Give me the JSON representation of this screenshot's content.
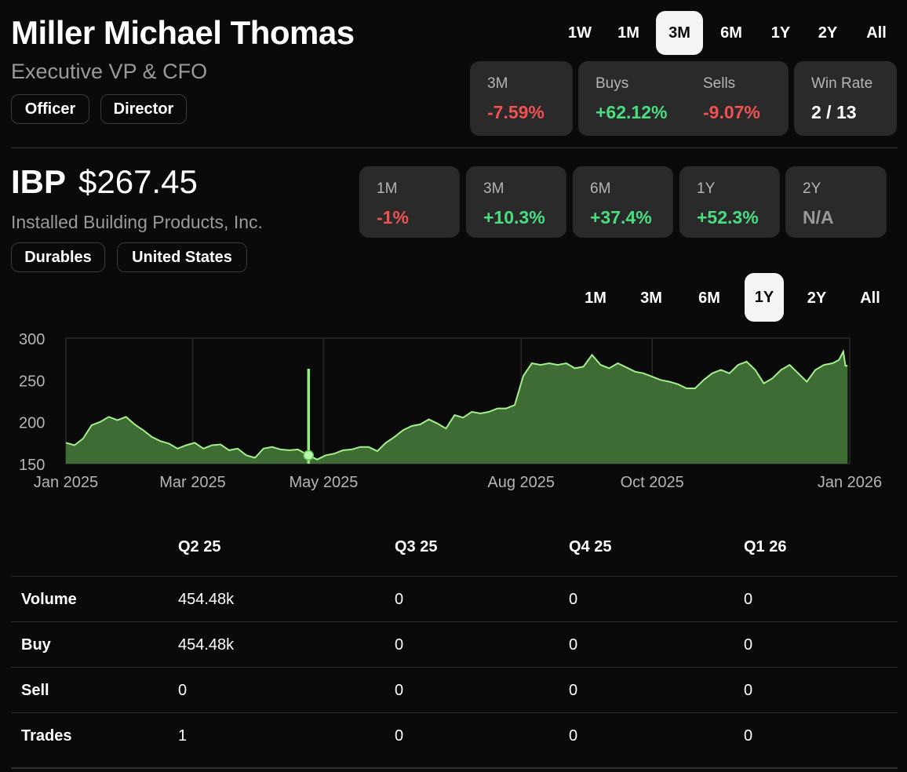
{
  "insider": {
    "name": "Miller Michael Thomas",
    "title": "Executive VP & CFO",
    "tags": [
      "Officer",
      "Director"
    ]
  },
  "insider_timeframes": {
    "options": [
      "1W",
      "1M",
      "3M",
      "6M",
      "1Y",
      "2Y",
      "All"
    ],
    "selected": "3M"
  },
  "insider_stats": [
    {
      "label": "3M",
      "value": "-7.59%",
      "tone": "neg"
    },
    {
      "label": "Buys",
      "value": "+62.12%",
      "tone": "pos"
    },
    {
      "label": "Sells",
      "value": "-9.07%",
      "tone": "neg"
    },
    {
      "label": "Win Rate",
      "value": "2 / 13",
      "tone": "neu"
    }
  ],
  "stock": {
    "ticker": "IBP",
    "price": "$267.45",
    "company": "Installed Building Products, Inc.",
    "tags": [
      "Durables",
      "United States"
    ]
  },
  "stock_returns": [
    {
      "label": "1M",
      "value": "-1%",
      "tone": "neg"
    },
    {
      "label": "3M",
      "value": "+10.3%",
      "tone": "pos"
    },
    {
      "label": "6M",
      "value": "+37.4%",
      "tone": "pos"
    },
    {
      "label": "1Y",
      "value": "+52.3%",
      "tone": "pos"
    },
    {
      "label": "2Y",
      "value": "N/A",
      "tone": "na"
    }
  ],
  "chart_timeframes": {
    "options": [
      "1M",
      "3M",
      "6M",
      "1Y",
      "2Y",
      "All"
    ],
    "selected": "1Y"
  },
  "chart_data": {
    "type": "area",
    "xlabel": "",
    "ylabel": "",
    "ylim": [
      150,
      300
    ],
    "y_ticks": [
      300,
      250,
      200,
      150
    ],
    "x_ticks": [
      {
        "label": "Jan 2025",
        "x": "2025-01-01"
      },
      {
        "label": "Mar 2025",
        "x": "2025-03-01"
      },
      {
        "label": "May 2025",
        "x": "2025-05-01"
      },
      {
        "label": "Aug 2025",
        "x": "2025-08-01"
      },
      {
        "label": "Oct 2025",
        "x": "2025-10-01"
      },
      {
        "label": "Jan 2026",
        "x": "2026-01-01"
      }
    ],
    "grid": true,
    "line_color": "#a3f08a",
    "fill_color": "#3f6b35",
    "trade_marker": {
      "x": "2025-04-24",
      "y": 160
    },
    "series": [
      {
        "x": "2025-01-01",
        "y": 175
      },
      {
        "x": "2025-01-05",
        "y": 172
      },
      {
        "x": "2025-01-09",
        "y": 180
      },
      {
        "x": "2025-01-13",
        "y": 196
      },
      {
        "x": "2025-01-17",
        "y": 200
      },
      {
        "x": "2025-01-21",
        "y": 206
      },
      {
        "x": "2025-01-25",
        "y": 202
      },
      {
        "x": "2025-01-29",
        "y": 206
      },
      {
        "x": "2025-02-02",
        "y": 197
      },
      {
        "x": "2025-02-06",
        "y": 190
      },
      {
        "x": "2025-02-10",
        "y": 182
      },
      {
        "x": "2025-02-14",
        "y": 177
      },
      {
        "x": "2025-02-18",
        "y": 174
      },
      {
        "x": "2025-02-22",
        "y": 168
      },
      {
        "x": "2025-02-26",
        "y": 172
      },
      {
        "x": "2025-03-02",
        "y": 175
      },
      {
        "x": "2025-03-06",
        "y": 168
      },
      {
        "x": "2025-03-10",
        "y": 172
      },
      {
        "x": "2025-03-14",
        "y": 173
      },
      {
        "x": "2025-03-18",
        "y": 166
      },
      {
        "x": "2025-03-22",
        "y": 168
      },
      {
        "x": "2025-03-26",
        "y": 160
      },
      {
        "x": "2025-03-30",
        "y": 157
      },
      {
        "x": "2025-04-03",
        "y": 168
      },
      {
        "x": "2025-04-07",
        "y": 170
      },
      {
        "x": "2025-04-11",
        "y": 167
      },
      {
        "x": "2025-04-15",
        "y": 166
      },
      {
        "x": "2025-04-19",
        "y": 167
      },
      {
        "x": "2025-04-24",
        "y": 160
      },
      {
        "x": "2025-04-28",
        "y": 155
      },
      {
        "x": "2025-05-02",
        "y": 160
      },
      {
        "x": "2025-05-06",
        "y": 162
      },
      {
        "x": "2025-05-10",
        "y": 166
      },
      {
        "x": "2025-05-14",
        "y": 167
      },
      {
        "x": "2025-05-18",
        "y": 170
      },
      {
        "x": "2025-05-22",
        "y": 170
      },
      {
        "x": "2025-05-26",
        "y": 165
      },
      {
        "x": "2025-05-30",
        "y": 175
      },
      {
        "x": "2025-06-03",
        "y": 182
      },
      {
        "x": "2025-06-07",
        "y": 190
      },
      {
        "x": "2025-06-11",
        "y": 195
      },
      {
        "x": "2025-06-15",
        "y": 197
      },
      {
        "x": "2025-06-19",
        "y": 203
      },
      {
        "x": "2025-06-23",
        "y": 198
      },
      {
        "x": "2025-06-27",
        "y": 192
      },
      {
        "x": "2025-07-01",
        "y": 208
      },
      {
        "x": "2025-07-05",
        "y": 205
      },
      {
        "x": "2025-07-09",
        "y": 212
      },
      {
        "x": "2025-07-13",
        "y": 210
      },
      {
        "x": "2025-07-17",
        "y": 212
      },
      {
        "x": "2025-07-21",
        "y": 216
      },
      {
        "x": "2025-07-25",
        "y": 216
      },
      {
        "x": "2025-07-29",
        "y": 220
      },
      {
        "x": "2025-08-02",
        "y": 255
      },
      {
        "x": "2025-08-06",
        "y": 270
      },
      {
        "x": "2025-08-10",
        "y": 268
      },
      {
        "x": "2025-08-14",
        "y": 270
      },
      {
        "x": "2025-08-18",
        "y": 268
      },
      {
        "x": "2025-08-22",
        "y": 270
      },
      {
        "x": "2025-08-26",
        "y": 264
      },
      {
        "x": "2025-08-30",
        "y": 266
      },
      {
        "x": "2025-09-03",
        "y": 280
      },
      {
        "x": "2025-09-07",
        "y": 268
      },
      {
        "x": "2025-09-11",
        "y": 264
      },
      {
        "x": "2025-09-15",
        "y": 270
      },
      {
        "x": "2025-09-19",
        "y": 265
      },
      {
        "x": "2025-09-23",
        "y": 260
      },
      {
        "x": "2025-09-27",
        "y": 258
      },
      {
        "x": "2025-10-01",
        "y": 254
      },
      {
        "x": "2025-10-05",
        "y": 250
      },
      {
        "x": "2025-10-09",
        "y": 248
      },
      {
        "x": "2025-10-13",
        "y": 245
      },
      {
        "x": "2025-10-17",
        "y": 240
      },
      {
        "x": "2025-10-21",
        "y": 240
      },
      {
        "x": "2025-10-25",
        "y": 250
      },
      {
        "x": "2025-10-29",
        "y": 258
      },
      {
        "x": "2025-11-02",
        "y": 262
      },
      {
        "x": "2025-11-06",
        "y": 258
      },
      {
        "x": "2025-11-10",
        "y": 268
      },
      {
        "x": "2025-11-14",
        "y": 272
      },
      {
        "x": "2025-11-18",
        "y": 262
      },
      {
        "x": "2025-11-22",
        "y": 246
      },
      {
        "x": "2025-11-26",
        "y": 252
      },
      {
        "x": "2025-11-30",
        "y": 262
      },
      {
        "x": "2025-12-04",
        "y": 268
      },
      {
        "x": "2025-12-08",
        "y": 258
      },
      {
        "x": "2025-12-12",
        "y": 248
      },
      {
        "x": "2025-12-16",
        "y": 262
      },
      {
        "x": "2025-12-20",
        "y": 268
      },
      {
        "x": "2025-12-24",
        "y": 270
      },
      {
        "x": "2025-12-27",
        "y": 274
      },
      {
        "x": "2025-12-29",
        "y": 284
      },
      {
        "x": "2025-12-30",
        "y": 267
      },
      {
        "x": "2025-12-31",
        "y": 267
      }
    ]
  },
  "table": {
    "columns": [
      "Q2 25",
      "Q3 25",
      "Q4 25",
      "Q1 26"
    ],
    "rows": [
      {
        "label": "Volume",
        "values": [
          "454.48k",
          "0",
          "0",
          "0"
        ]
      },
      {
        "label": "Buy",
        "values": [
          "454.48k",
          "0",
          "0",
          "0"
        ]
      },
      {
        "label": "Sell",
        "values": [
          "0",
          "0",
          "0",
          "0"
        ]
      },
      {
        "label": "Trades",
        "values": [
          "1",
          "0",
          "0",
          "0"
        ]
      }
    ]
  }
}
